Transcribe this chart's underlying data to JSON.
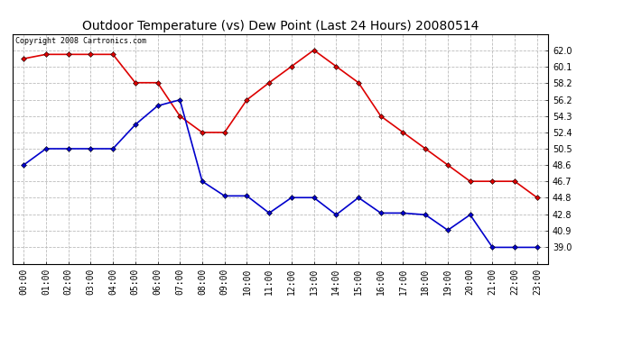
{
  "title": "Outdoor Temperature (vs) Dew Point (Last 24 Hours) 20080514",
  "copyright_text": "Copyright 2008 Cartronics.com",
  "hours": [
    "00:00",
    "01:00",
    "02:00",
    "03:00",
    "04:00",
    "05:00",
    "06:00",
    "07:00",
    "08:00",
    "09:00",
    "10:00",
    "11:00",
    "12:00",
    "13:00",
    "14:00",
    "15:00",
    "16:00",
    "17:00",
    "18:00",
    "19:00",
    "20:00",
    "21:00",
    "22:00",
    "23:00"
  ],
  "temp": [
    61.0,
    61.5,
    61.5,
    61.5,
    61.5,
    58.2,
    58.2,
    54.3,
    52.4,
    52.4,
    56.2,
    58.2,
    60.1,
    62.0,
    60.1,
    58.2,
    54.3,
    52.4,
    50.5,
    48.6,
    46.7,
    46.7,
    46.7,
    44.8
  ],
  "dew": [
    48.6,
    50.5,
    50.5,
    50.5,
    50.5,
    53.3,
    55.5,
    56.2,
    46.7,
    45.0,
    45.0,
    43.0,
    44.8,
    44.8,
    42.8,
    44.8,
    43.0,
    43.0,
    42.8,
    41.0,
    42.8,
    39.0,
    39.0,
    39.0
  ],
  "ylim_min": 37.1,
  "ylim_max": 63.9,
  "yticks": [
    39.0,
    40.9,
    42.8,
    44.8,
    46.7,
    48.6,
    50.5,
    52.4,
    54.3,
    56.2,
    58.2,
    60.1,
    62.0
  ],
  "temp_color": "#dd0000",
  "dew_color": "#0000cc",
  "grid_color": "#bbbbbb",
  "bg_color": "#ffffff",
  "plot_bg": "#ffffff",
  "title_fontsize": 10,
  "copyright_fontsize": 6,
  "tick_fontsize": 7
}
